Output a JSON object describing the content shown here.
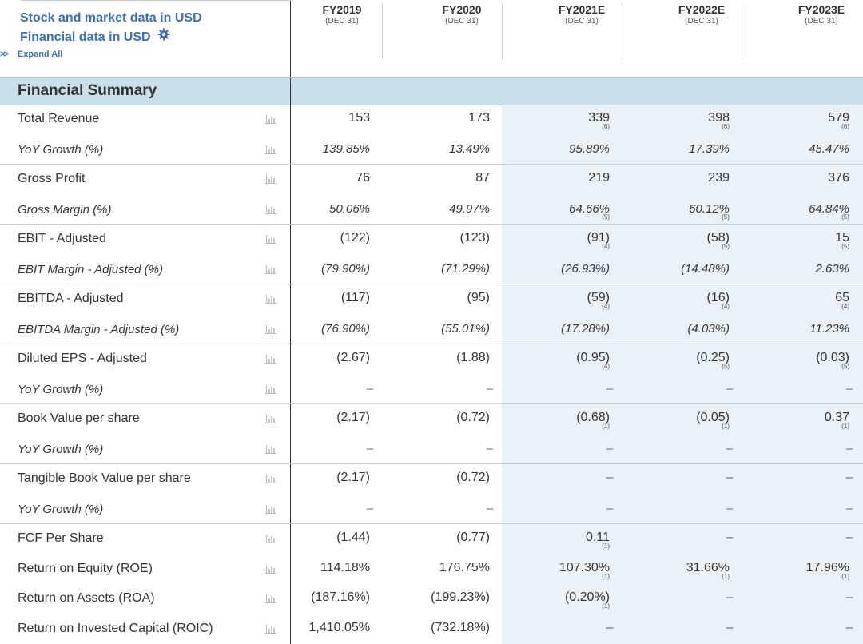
{
  "header": {
    "stock_currency": "Stock and market data in USD",
    "financial_currency": "Financial data in USD",
    "expand_all": "Expand All",
    "periods": [
      {
        "fy": "FY2019",
        "end": "(DEC 31)"
      },
      {
        "fy": "FY2020",
        "end": "(DEC 31)"
      },
      {
        "fy": "FY2021E",
        "end": "(DEC 31)"
      },
      {
        "fy": "FY2022E",
        "end": "(DEC 31)"
      },
      {
        "fy": "FY2023E",
        "end": "(DEC 31)"
      }
    ]
  },
  "section_title": "Financial Summary",
  "rows": [
    {
      "label": "Total Revenue",
      "sub": false,
      "values": [
        {
          "v": "153"
        },
        {
          "v": "173"
        },
        {
          "v": "339",
          "c": "(6)"
        },
        {
          "v": "398",
          "c": "(6)"
        },
        {
          "v": "579",
          "c": "(6)"
        }
      ]
    },
    {
      "label": "YoY Growth (%)",
      "sub": true,
      "values": [
        {
          "v": "139.85%"
        },
        {
          "v": "13.49%"
        },
        {
          "v": "95.89%"
        },
        {
          "v": "17.39%"
        },
        {
          "v": "45.47%"
        }
      ]
    },
    {
      "label": "Gross Profit",
      "sub": false,
      "values": [
        {
          "v": "76"
        },
        {
          "v": "87"
        },
        {
          "v": "219"
        },
        {
          "v": "239"
        },
        {
          "v": "376"
        }
      ]
    },
    {
      "label": "Gross Margin (%)",
      "sub": true,
      "values": [
        {
          "v": "50.06%"
        },
        {
          "v": "49.97%"
        },
        {
          "v": "64.66%",
          "c": "(5)"
        },
        {
          "v": "60.12%",
          "c": "(5)"
        },
        {
          "v": "64.84%",
          "c": "(5)"
        }
      ]
    },
    {
      "label": "EBIT - Adjusted",
      "sub": false,
      "values": [
        {
          "v": "(122)"
        },
        {
          "v": "(123)"
        },
        {
          "v": "(91)",
          "c": "(4)"
        },
        {
          "v": "(58)",
          "c": "(5)"
        },
        {
          "v": "15",
          "c": "(5)"
        }
      ]
    },
    {
      "label": "EBIT Margin - Adjusted (%)",
      "sub": true,
      "values": [
        {
          "v": "(79.90%)"
        },
        {
          "v": "(71.29%)"
        },
        {
          "v": "(26.93%)"
        },
        {
          "v": "(14.48%)"
        },
        {
          "v": "2.63%"
        }
      ]
    },
    {
      "label": "EBITDA - Adjusted",
      "sub": false,
      "values": [
        {
          "v": "(117)"
        },
        {
          "v": "(95)"
        },
        {
          "v": "(59)",
          "c": "(4)"
        },
        {
          "v": "(16)",
          "c": "(4)"
        },
        {
          "v": "65",
          "c": "(4)"
        }
      ]
    },
    {
      "label": "EBITDA Margin - Adjusted (%)",
      "sub": true,
      "values": [
        {
          "v": "(76.90%)"
        },
        {
          "v": "(55.01%)"
        },
        {
          "v": "(17.28%)"
        },
        {
          "v": "(4.03%)"
        },
        {
          "v": "11.23%"
        }
      ]
    },
    {
      "label": "Diluted EPS - Adjusted",
      "sub": false,
      "values": [
        {
          "v": "(2.67)"
        },
        {
          "v": "(1.88)"
        },
        {
          "v": "(0.95)",
          "c": "(4)"
        },
        {
          "v": "(0.25)",
          "c": "(5)"
        },
        {
          "v": "(0.03)",
          "c": "(5)"
        }
      ]
    },
    {
      "label": "YoY Growth (%)",
      "sub": true,
      "values": [
        {
          "v": "–"
        },
        {
          "v": "–"
        },
        {
          "v": "–"
        },
        {
          "v": "–"
        },
        {
          "v": "–"
        }
      ]
    },
    {
      "label": "Book Value per share",
      "sub": false,
      "values": [
        {
          "v": "(2.17)"
        },
        {
          "v": "(0.72)"
        },
        {
          "v": "(0.68)",
          "c": "(1)"
        },
        {
          "v": "(0.05)",
          "c": "(1)"
        },
        {
          "v": "0.37",
          "c": "(1)"
        }
      ]
    },
    {
      "label": "YoY Growth (%)",
      "sub": true,
      "values": [
        {
          "v": "–"
        },
        {
          "v": "–"
        },
        {
          "v": "–"
        },
        {
          "v": "–"
        },
        {
          "v": "–"
        }
      ]
    },
    {
      "label": "Tangible Book Value per share",
      "sub": false,
      "values": [
        {
          "v": "(2.17)"
        },
        {
          "v": "(0.72)"
        },
        {
          "v": "–"
        },
        {
          "v": "–"
        },
        {
          "v": "–"
        }
      ]
    },
    {
      "label": "YoY Growth (%)",
      "sub": true,
      "values": [
        {
          "v": "–"
        },
        {
          "v": "–"
        },
        {
          "v": "–"
        },
        {
          "v": "–"
        },
        {
          "v": "–"
        }
      ]
    },
    {
      "label": "FCF Per Share",
      "sub": false,
      "values": [
        {
          "v": "(1.44)"
        },
        {
          "v": "(0.77)"
        },
        {
          "v": "0.11",
          "c": "(1)"
        },
        {
          "v": "–"
        },
        {
          "v": "–"
        }
      ]
    },
    {
      "label": "Return on Equity (ROE)",
      "sub": false,
      "values": [
        {
          "v": "114.18%"
        },
        {
          "v": "176.75%"
        },
        {
          "v": "107.30%",
          "c": "(1)"
        },
        {
          "v": "31.66%",
          "c": "(1)"
        },
        {
          "v": "17.96%",
          "c": "(1)"
        }
      ]
    },
    {
      "label": "Return on Assets (ROA)",
      "sub": false,
      "values": [
        {
          "v": "(187.16%)"
        },
        {
          "v": "(199.23%)"
        },
        {
          "v": "(0.20%)",
          "c": "(1)"
        },
        {
          "v": "–"
        },
        {
          "v": "–"
        }
      ]
    },
    {
      "label": "Return on Invested Capital (ROIC)",
      "sub": false,
      "values": [
        {
          "v": "1,410.05%"
        },
        {
          "v": "(732.18%)"
        },
        {
          "v": "–"
        },
        {
          "v": "–"
        },
        {
          "v": "–"
        }
      ]
    }
  ],
  "icons": {
    "settings": "gear-icon",
    "expand": "double-chevron-right-icon",
    "row_chart": "bar-chart-icon"
  },
  "colors": {
    "link": "#3a6fb5",
    "section_bg": "#c9dfea",
    "estimate_bg": "#eaf1f7"
  }
}
